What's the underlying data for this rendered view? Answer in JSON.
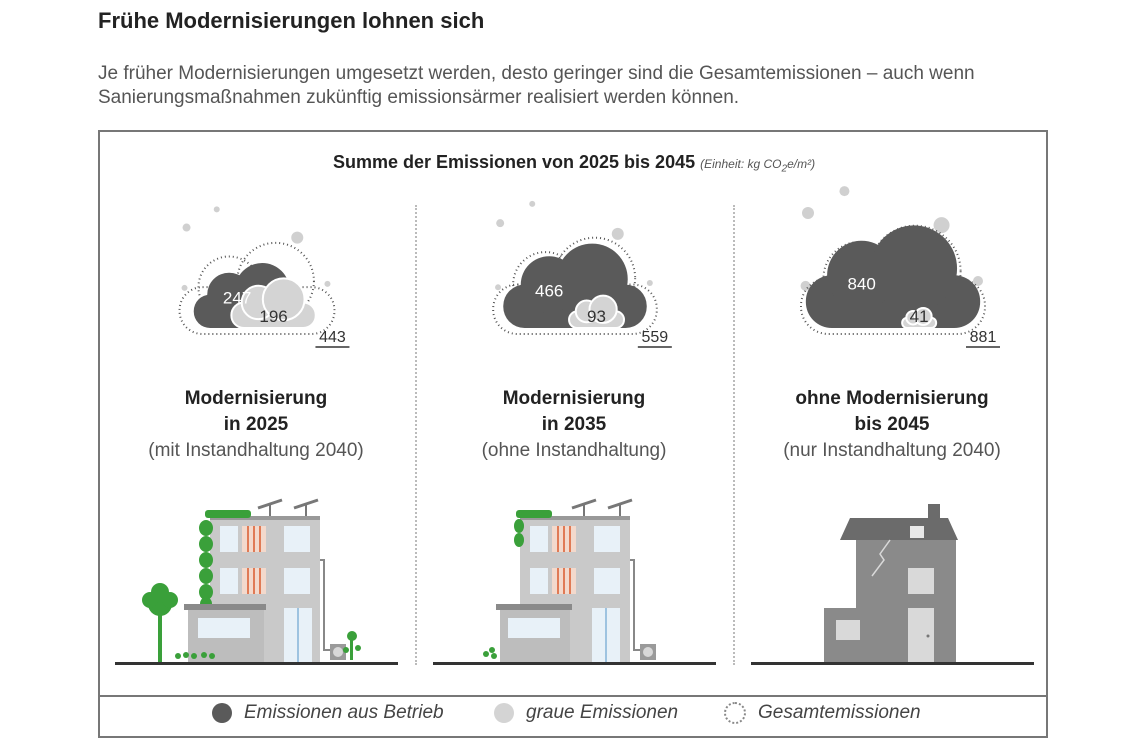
{
  "header": {
    "title": "Frühe Modernisierungen lohnen sich",
    "subtitle": "Je früher Modernisierungen umgesetzt werden, desto geringer sind die Gesamtemissionen – auch wenn Sanierungsmaßnahmen zukünftig emissionsärmer realisiert werden können."
  },
  "chart_data": {
    "type": "bar",
    "title": "Summe der Emissionen von 2025 bis 2045",
    "unit_prefix": "(Einheit: kg CO",
    "unit_sub": "2",
    "unit_suffix": "e/m²)",
    "categories": [
      {
        "line1": "Modernisierung",
        "line2": "in 2025",
        "line3": "(mit Instandhaltung 2040)"
      },
      {
        "line1": "Modernisierung",
        "line2": "in 2035",
        "line3": "(ohne Instandhaltung)"
      },
      {
        "line1": "ohne Modernisierung",
        "line2": "bis 2045",
        "line3": "(nur Instandhaltung 2040)"
      }
    ],
    "series": [
      {
        "name": "Emissionen aus Betrieb",
        "values": [
          247,
          466,
          840
        ],
        "color": "#5a5a5a"
      },
      {
        "name": "graue Emissionen",
        "values": [
          196,
          93,
          41
        ],
        "color": "#d4d4d4"
      }
    ],
    "totals": {
      "name": "Gesamtemissionen",
      "values": [
        443,
        559,
        881
      ]
    }
  },
  "colors": {
    "operation": "#5a5a5a",
    "grey": "#d4d4d4",
    "green": "#3aa03a",
    "building": "#c9c9c9",
    "ground": "#333333"
  },
  "icons": {
    "legend_operation": "dark-circle-icon",
    "legend_grey": "light-circle-icon",
    "legend_total": "dotted-circle-icon",
    "panel_1": "modernized-building-green-roof-icon",
    "panel_2": "modernized-building-icon",
    "panel_3": "old-house-icon"
  }
}
